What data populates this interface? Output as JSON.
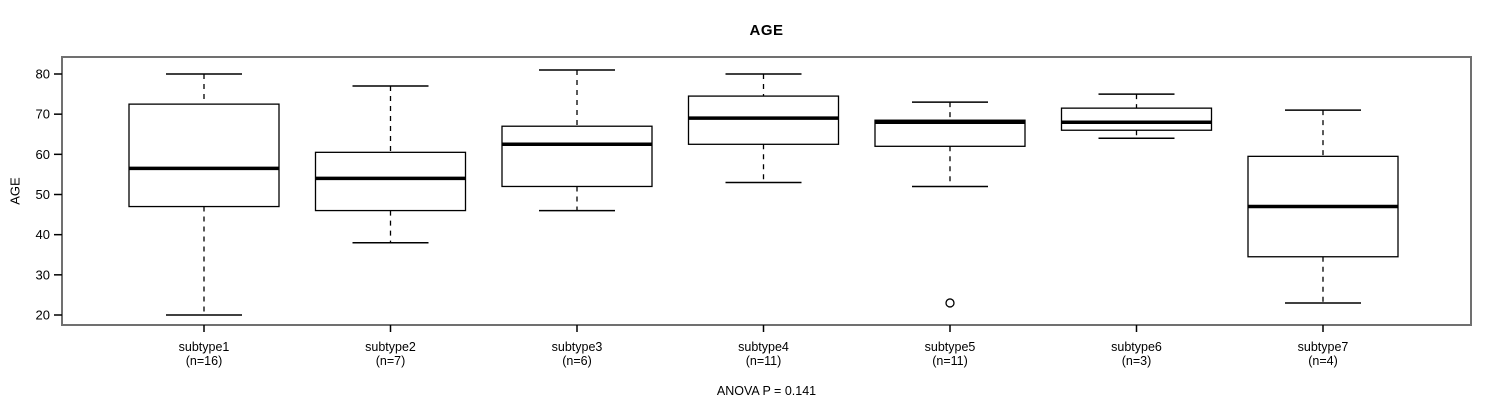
{
  "figure": {
    "title": "AGE",
    "y_axis_label": "AGE",
    "footer": "ANOVA P = 0.141"
  },
  "chart_data": {
    "type": "boxplot",
    "title": "AGE",
    "xlabel": "",
    "ylabel": "AGE",
    "annotation": "ANOVA P = 0.141",
    "ylim": [
      17.5,
      84.5
    ],
    "yticks": [
      20,
      30,
      40,
      50,
      60,
      70,
      80
    ],
    "grid": false,
    "legend": "none",
    "groups": [
      {
        "label": "subtype1",
        "n_label": "(n=16)",
        "whisker_low": 20,
        "q1": 47,
        "median": 56.5,
        "q3": 72.5,
        "whisker_high": 80,
        "outliers": []
      },
      {
        "label": "subtype2",
        "n_label": "(n=7)",
        "whisker_low": 38,
        "q1": 46,
        "median": 54,
        "q3": 60.5,
        "whisker_high": 77,
        "outliers": []
      },
      {
        "label": "subtype3",
        "n_label": "(n=6)",
        "whisker_low": 46,
        "q1": 52,
        "median": 62.5,
        "q3": 67,
        "whisker_high": 81,
        "outliers": []
      },
      {
        "label": "subtype4",
        "n_label": "(n=11)",
        "whisker_low": 53,
        "q1": 62.5,
        "median": 69,
        "q3": 74.5,
        "whisker_high": 80,
        "outliers": []
      },
      {
        "label": "subtype5",
        "n_label": "(n=11)",
        "whisker_low": 52,
        "q1": 62,
        "median": 68,
        "q3": 68.5,
        "whisker_high": 73,
        "outliers": [
          23
        ]
      },
      {
        "label": "subtype6",
        "n_label": "(n=3)",
        "whisker_low": 64,
        "q1": 66,
        "median": 68,
        "q3": 71.5,
        "whisker_high": 75,
        "outliers": []
      },
      {
        "label": "subtype7",
        "n_label": "(n=4)",
        "whisker_low": 23,
        "q1": 34.5,
        "median": 47,
        "q3": 59.5,
        "whisker_high": 71,
        "outliers": []
      }
    ],
    "colors": {
      "stroke": "#000000",
      "frame": "#707070",
      "box_fill": "#ffffff",
      "background": "#ffffff",
      "text": "#000000"
    }
  }
}
